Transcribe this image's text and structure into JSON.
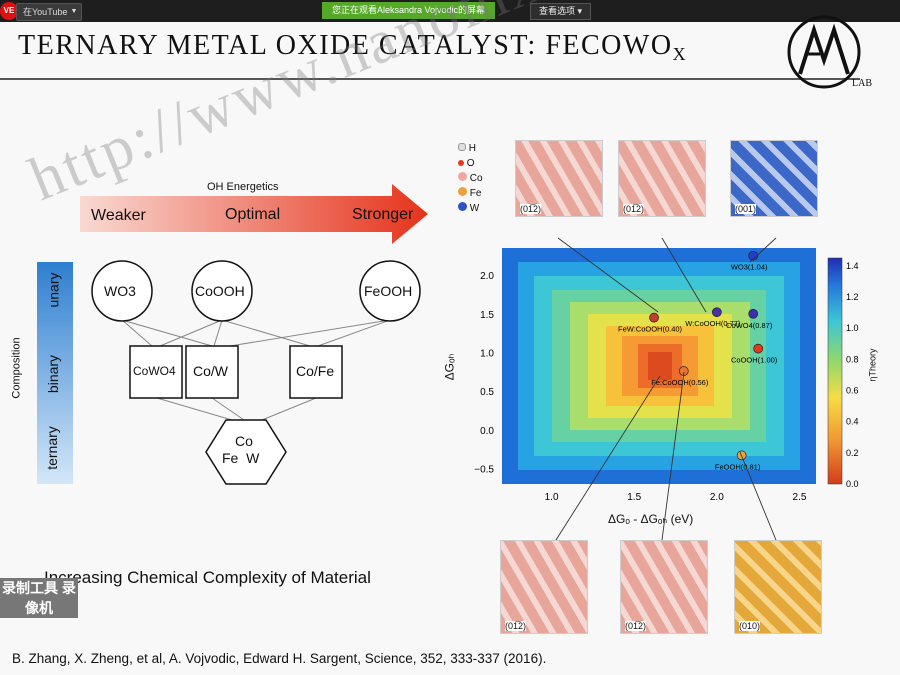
{
  "youtube_chip": {
    "live_label": "VE",
    "label": "在YouTube"
  },
  "share_banner": "您正在观看Aleksandra Vojvodic的屏幕",
  "view_options": "查看选项",
  "slide": {
    "title_main": "TERNARY METAL OXIDE CATALYST: FECOWO",
    "title_sub": "X",
    "logo_sub": "LAB",
    "energetics": {
      "heading": "OH Energetics",
      "weaker": "Weaker",
      "optimal": "Optimal",
      "stronger": "Stronger"
    },
    "composition_axis": {
      "label": "Composition",
      "unary": "unary",
      "binary": "binary",
      "ternary": "ternary"
    },
    "nodes": {
      "wo3": "WO3",
      "cooh": "CoOOH",
      "feooh": "FeOOH",
      "cowo4": "CoWO4",
      "cow": "Co/W",
      "cofe": "Co/Fe",
      "ternary_co": "Co",
      "ternary_few": "Fe  W"
    },
    "complexity_label": "Increasing Chemical Complexity of Material",
    "citation": "B. Zhang, X. Zheng, et al, A. Vojvodic, Edward H. Sargent, Science, 352, 333-337 (2016).",
    "legend_items": [
      "H",
      "O",
      "Co",
      "Fe",
      "W"
    ],
    "structure_labels_top": [
      "(01̅2)",
      "(01̅2)",
      "(001)"
    ],
    "structure_labels_bottom": [
      "(01̅2)",
      "(01̅2)",
      "(010)"
    ],
    "watermark": "http://www.nanomxenes.com",
    "recorder_watermark": "录制工具 录像机"
  },
  "colors": {
    "arrow_start": "#f6c7bf",
    "arrow_end": "#e8351c",
    "axis_bar_top": "#2f7fd0",
    "axis_bar_bottom": "#cfe3f7",
    "banner": "#55a828"
  },
  "chart_data": {
    "type": "heatmap",
    "xlabel": "ΔGₒ - ΔGₒₕ (eV)",
    "ylabel": "ΔGₒₕ",
    "xlim": [
      0.7,
      2.6
    ],
    "ylim": [
      -0.7,
      2.35
    ],
    "x_ticks": [
      1.0,
      1.5,
      2.0,
      2.5
    ],
    "y_ticks": [
      -0.5,
      0.0,
      0.5,
      1.0,
      1.5,
      2.0
    ],
    "colorbar": {
      "label": "ηTheory",
      "range": [
        0.0,
        1.45
      ],
      "ticks": [
        0.0,
        0.2,
        0.4,
        0.6,
        0.8,
        1.0,
        1.2,
        1.4
      ]
    },
    "points": [
      {
        "label": "WO3(1.04)",
        "x": 2.22,
        "y": 2.25,
        "color": "#1f3fcf"
      },
      {
        "label": "W:CoOOH(0.77)",
        "x": 2.0,
        "y": 1.52,
        "color": "#4a2fa8"
      },
      {
        "label": "FeW:CoOOH(0.40)",
        "x": 1.62,
        "y": 1.45,
        "color": "#c0402c"
      },
      {
        "label": "CoWO4(0.87)",
        "x": 2.22,
        "y": 1.5,
        "color": "#3a2fb0"
      },
      {
        "label": "CoOOH(1.00)",
        "x": 2.25,
        "y": 1.05,
        "color": "#e4381e"
      },
      {
        "label": "Fe:CoOOH(0.56)",
        "x": 1.8,
        "y": 0.76,
        "color": "#e8752f"
      },
      {
        "label": "FeOOH(0.81)",
        "x": 2.15,
        "y": -0.33,
        "color": "#f0a23a"
      }
    ]
  }
}
